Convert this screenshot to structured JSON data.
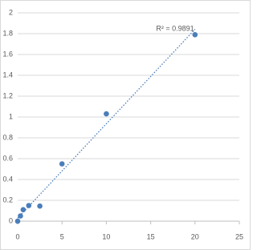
{
  "chart_data": {
    "type": "scatter",
    "annotation": "R² = 0.9891",
    "x": [
      0,
      0.3125,
      0.625,
      1.25,
      2.5,
      5,
      10,
      20
    ],
    "values": [
      0.0,
      0.05,
      0.11,
      0.15,
      0.145,
      0.55,
      1.03,
      1.79
    ],
    "color": "#4a7ebb",
    "trendline": {
      "type": "linear",
      "color": "#4a7ebb"
    },
    "xlim": [
      0,
      25
    ],
    "xticks": [
      0,
      5,
      10,
      15,
      20,
      25
    ],
    "ylim": [
      0,
      2
    ],
    "yticks": [
      0,
      0.2,
      0.4,
      0.6,
      0.8,
      1,
      1.2,
      1.4,
      1.6,
      1.8,
      2
    ],
    "grid": true
  }
}
